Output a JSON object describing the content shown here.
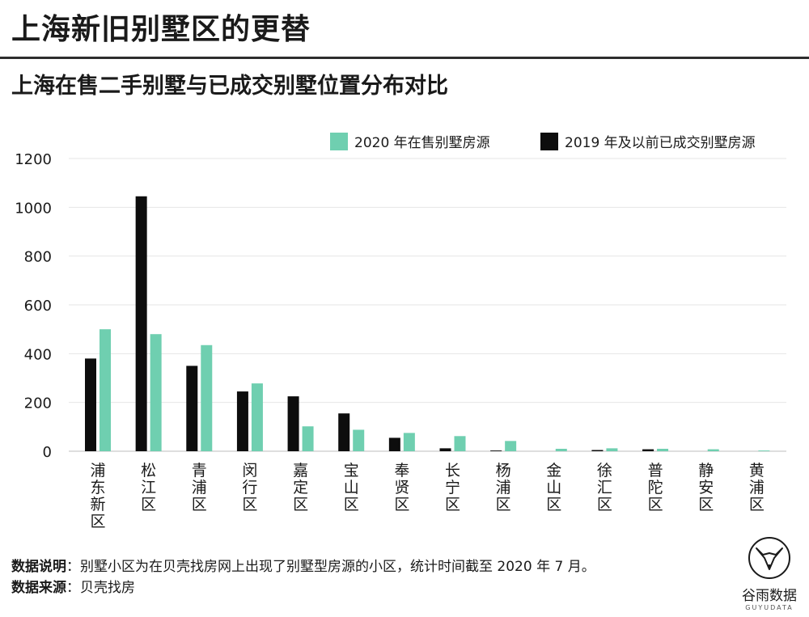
{
  "title": "上海新旧别墅区的更替",
  "subtitle": "上海在售二手别墅与已成交别墅位置分布对比",
  "colors": {
    "series_2020": "#6fcfb0",
    "series_2019": "#0d0d0d",
    "grid": "#e6e6e6",
    "text": "#1a1a1a"
  },
  "chart_data": {
    "type": "bar",
    "categories": [
      "浦东新区",
      "松江区",
      "青浦区",
      "闵行区",
      "嘉定区",
      "宝山区",
      "奉贤区",
      "长宁区",
      "杨浦区",
      "金山区",
      "徐汇区",
      "普陀区",
      "静安区",
      "黄浦区"
    ],
    "series": [
      {
        "name": "2019 年及以前已成交别墅房源",
        "color": "#0d0d0d",
        "values": [
          380,
          1045,
          350,
          245,
          225,
          155,
          55,
          12,
          3,
          0,
          5,
          8,
          0,
          0
        ]
      },
      {
        "name": "2020 年在售别墅房源",
        "color": "#6fcfb0",
        "values": [
          500,
          480,
          435,
          278,
          102,
          88,
          75,
          62,
          42,
          10,
          12,
          10,
          8,
          3
        ]
      }
    ],
    "legend_order": [
      "2020 年在售别墅房源",
      "2019 年及以前已成交别墅房源"
    ],
    "yticks": [
      0,
      200,
      400,
      600,
      800,
      1000,
      1200
    ],
    "ylim": [
      0,
      1200
    ],
    "grid": true,
    "legend_position": "top-right",
    "xlabel": "",
    "ylabel": ""
  },
  "footer": {
    "note_label": "数据说明",
    "note_text": "：别墅小区为在贝壳找房网上出现了别墅型房源的小区，统计时间截至 2020 年 7 月。",
    "source_label": "数据来源",
    "source_text": "：贝壳找房"
  },
  "brand": {
    "name": "谷雨数据",
    "latin": "GUYUDATA",
    "logo_icon": "fox-head-icon"
  }
}
